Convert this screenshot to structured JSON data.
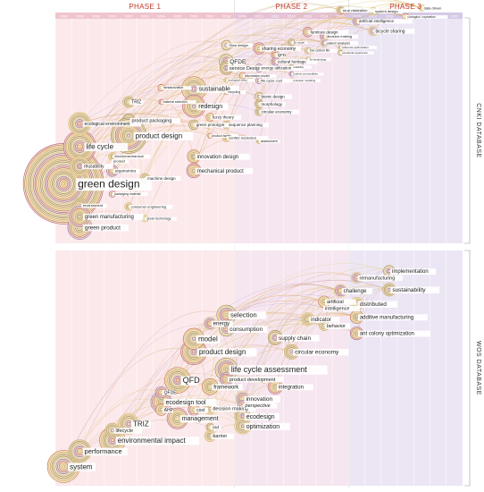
{
  "chart_data": {
    "type": "timeline",
    "phases": [
      {
        "label": "PHASE 1",
        "start": 1998,
        "end": 2008
      },
      {
        "label": "PHASE 2",
        "start": 2009,
        "end": 2015
      },
      {
        "label": "PHASE 3",
        "start": 2016,
        "end": 2022
      }
    ],
    "years": [
      1998,
      1999,
      2000,
      2001,
      2002,
      2003,
      2004,
      2005,
      2006,
      2007,
      2008,
      2009,
      2010,
      2011,
      2012,
      2013,
      2014,
      2015,
      2016,
      2017,
      2018,
      2019,
      2020,
      2021,
      2022
    ],
    "panels": [
      {
        "database": "CNKI DATABASE",
        "keywords": [
          {
            "text": "green design",
            "year": 1998,
            "row": 0.735,
            "size": 12,
            "node": 5.0
          },
          {
            "text": "life cycle",
            "year": 1999,
            "row": 0.565,
            "size": 8,
            "node": 2.0
          },
          {
            "text": "ecological environment",
            "year": 1999,
            "row": 0.46,
            "size": 5,
            "node": 1.4
          },
          {
            "text": "reusability",
            "year": 1999,
            "row": 0.655,
            "size": 5,
            "node": 1.2
          },
          {
            "text": "environment",
            "year": 1999,
            "row": 0.835,
            "size": 4,
            "node": 0.9
          },
          {
            "text": "green product",
            "year": 1999,
            "row": 0.935,
            "size": 6.5,
            "node": 1.5
          },
          {
            "text": "green manufacturing",
            "year": 1999,
            "row": 0.885,
            "size": 6,
            "node": 1.5
          },
          {
            "text": "electromechanical",
            "year": 2001,
            "row": 0.61,
            "size": 4,
            "node": 0.5
          },
          {
            "text": "product",
            "year": 2001,
            "row": 0.632,
            "size": 4,
            "node": 0
          },
          {
            "text": "ergonomics",
            "year": 2001,
            "row": 0.676,
            "size": 4.5,
            "node": 0.7
          },
          {
            "text": "packaging material",
            "year": 2001,
            "row": 0.782,
            "size": 3.5,
            "node": 0.4
          },
          {
            "text": "product packaging",
            "year": 2002,
            "row": 0.445,
            "size": 5.5,
            "node": 0.8
          },
          {
            "text": "product design",
            "year": 2002,
            "row": 0.515,
            "size": 8,
            "node": 2.2
          },
          {
            "text": "TRIZ",
            "year": 2002,
            "row": 0.36,
            "size": 5,
            "node": 0.7
          },
          {
            "text": "machine design",
            "year": 2003,
            "row": 0.71,
            "size": 4.5,
            "node": 0.6
          },
          {
            "text": "consumer engineering",
            "year": 2002,
            "row": 0.84,
            "size": 4,
            "node": 0.5
          },
          {
            "text": "green technology",
            "year": 2003,
            "row": 0.895,
            "size": 3.5,
            "node": 0.4
          },
          {
            "text": "miniaturization",
            "year": 2004,
            "row": 0.295,
            "size": 3.5,
            "node": 0.4
          },
          {
            "text": "material selection",
            "year": 2004,
            "row": 0.36,
            "size": 3.5,
            "node": 0.3
          },
          {
            "text": "sustainable",
            "year": 2006,
            "row": 0.3,
            "size": 7,
            "node": 1.5
          },
          {
            "text": "redesign",
            "year": 2006,
            "row": 0.38,
            "size": 7,
            "node": 1.4
          },
          {
            "text": "green prototype",
            "year": 2006,
            "row": 0.465,
            "size": 4.5,
            "node": 0.6
          },
          {
            "text": "innovation design",
            "year": 2006,
            "row": 0.61,
            "size": 6,
            "node": 0.8
          },
          {
            "text": "mechanical product",
            "year": 2006,
            "row": 0.675,
            "size": 6,
            "node": 0.9
          },
          {
            "text": "fuzzy theory",
            "year": 2007,
            "row": 0.43,
            "size": 4.5,
            "node": 0.5
          },
          {
            "text": "product family",
            "year": 2007,
            "row": 0.515,
            "size": 3.5,
            "node": 0.3
          },
          {
            "text": "QFDE",
            "year": 2008,
            "row": 0.175,
            "size": 6.5,
            "node": 0.9
          },
          {
            "text": "service Design",
            "year": 2008,
            "row": 0.205,
            "size": 5.5,
            "node": 0.8
          },
          {
            "text": "Slow design",
            "year": 2008,
            "row": 0.1,
            "size": 4,
            "node": 0.6
          },
          {
            "text": "recycling",
            "year": 2008,
            "row": 0.315,
            "size": 3.5,
            "node": 0.3
          },
          {
            "text": "sequence planning",
            "year": 2008,
            "row": 0.465,
            "size": 4.5,
            "node": 0.5
          },
          {
            "text": "conflict resolution",
            "year": 2008,
            "row": 0.525,
            "size": 4,
            "node": 0.5
          },
          {
            "text": "ecological effect",
            "year": 2008,
            "row": 0.26,
            "size": 3,
            "node": 0.3
          },
          {
            "text": "information model",
            "year": 2009,
            "row": 0.24,
            "size": 3.5,
            "node": 0.4
          },
          {
            "text": "energy utilization",
            "year": 2010,
            "row": 0.205,
            "size": 4.5,
            "node": 0.5
          },
          {
            "text": "life cycle cost",
            "year": 2010,
            "row": 0.262,
            "size": 4,
            "node": 0.4
          },
          {
            "text": "bionic design",
            "year": 2010,
            "row": 0.335,
            "size": 4.5,
            "node": 0.5
          },
          {
            "text": "morphology",
            "year": 2010,
            "row": 0.37,
            "size": 4.5,
            "node": 0.5
          },
          {
            "text": "circular economy",
            "year": 2010,
            "row": 0.405,
            "size": 4.5,
            "node": 0.5
          },
          {
            "text": "assessment",
            "year": 2010,
            "row": 0.54,
            "size": 3.5,
            "node": 0.3
          },
          {
            "text": "sharing economy",
            "year": 2010,
            "row": 0.115,
            "size": 5,
            "node": 0.7
          },
          {
            "text": "QFD",
            "year": 2011,
            "row": 0.145,
            "size": 4.5,
            "node": 0.5
          },
          {
            "text": "cultural heritage",
            "year": 2011,
            "row": 0.175,
            "size": 4.5,
            "node": 0.5
          },
          {
            "text": "tourism commodities",
            "year": 2012,
            "row": 0.232,
            "size": 3,
            "node": 0.3
          },
          {
            "text": "emission modeling",
            "year": 2012,
            "row": 0.262,
            "size": 3,
            "node": 0.3
          },
          {
            "text": "reliability",
            "year": 2012,
            "row": 0.2,
            "size": 3,
            "node": 0.3
          },
          {
            "text": "3d model",
            "year": 2012,
            "row": 0.088,
            "size": 3,
            "node": 0.4
          },
          {
            "text": "low carbon life",
            "year": 2013,
            "row": 0.125,
            "size": 3.5,
            "node": 0.4
          },
          {
            "text": "3d technology",
            "year": 2013,
            "row": 0.165,
            "size": 3,
            "node": 0.3
          },
          {
            "text": "furniture design",
            "year": 2013,
            "row": 0.04,
            "size": 4.5,
            "node": 0.6
          },
          {
            "text": "decision making",
            "year": 2014,
            "row": 0.06,
            "size": 4,
            "node": 0.5
          },
          {
            "text": "patent analysis",
            "year": 2014,
            "row": 0.09,
            "size": 4,
            "node": 0.5
          },
          {
            "text": "reference optimization",
            "year": 2015,
            "row": 0.11,
            "size": 3,
            "node": 0.3
          },
          {
            "text": "emotional experience",
            "year": 2015,
            "row": 0.135,
            "size": 3,
            "node": 0.3
          },
          {
            "text": "rural vitalization",
            "year": 2015,
            "row": -0.06,
            "size": 4,
            "node": 0.5
          },
          {
            "text": "system design",
            "year": 2017,
            "row": -0.055,
            "size": 4,
            "node": 0.5
          },
          {
            "text": "data driven",
            "year": 2020,
            "row": -0.07,
            "size": 4,
            "node": 0.4
          },
          {
            "text": "biological inspiration",
            "year": 2019,
            "row": -0.03,
            "size": 3.5,
            "node": 0.4
          },
          {
            "text": "artificial intelligence",
            "year": 2016,
            "row": -0.01,
            "size": 4.5,
            "node": 0.5
          },
          {
            "text": "bicycle sharing",
            "year": 2017,
            "row": 0.035,
            "size": 5,
            "node": 0.6
          }
        ]
      },
      {
        "database": "WOS DATABASE",
        "keywords": [
          {
            "text": "system",
            "year": 1998,
            "row": 0.965,
            "size": 8,
            "node": 2.0
          },
          {
            "text": "performance",
            "year": 1999,
            "row": 0.895,
            "size": 7.5,
            "node": 1.4
          },
          {
            "text": "environmental impact",
            "year": 2001,
            "row": 0.845,
            "size": 8,
            "node": 1.6
          },
          {
            "text": "TRIZ",
            "year": 2002,
            "row": 0.77,
            "size": 8,
            "node": 1.3
          },
          {
            "text": "lifecycle",
            "year": 2001,
            "row": 0.8,
            "size": 5.5,
            "node": 0.9
          },
          {
            "text": "management",
            "year": 2005,
            "row": 0.745,
            "size": 7,
            "node": 1.3
          },
          {
            "text": "ecodesign tool",
            "year": 2004,
            "row": 0.67,
            "size": 7,
            "node": 1.3
          },
          {
            "text": "AHP",
            "year": 2004,
            "row": 0.705,
            "size": 5,
            "node": 0.7
          },
          {
            "text": "cost",
            "year": 2006,
            "row": 0.705,
            "size": 5,
            "node": 0.7
          },
          {
            "text": "QFDE",
            "year": 2004,
            "row": 0.625,
            "size": 5,
            "node": 0.7
          },
          {
            "text": "QFD",
            "year": 2005,
            "row": 0.57,
            "size": 9,
            "node": 1.6
          },
          {
            "text": "product design",
            "year": 2006,
            "row": 0.44,
            "size": 8,
            "node": 1.6
          },
          {
            "text": "model",
            "year": 2006,
            "row": 0.38,
            "size": 8,
            "node": 1.3
          },
          {
            "text": "framework",
            "year": 2007,
            "row": 0.6,
            "size": 6,
            "node": 1.0
          },
          {
            "text": "decision making",
            "year": 2007,
            "row": 0.7,
            "size": 5.5,
            "node": 0.7
          },
          {
            "text": "life cycle assessment",
            "year": 2008,
            "row": 0.52,
            "size": 9,
            "node": 1.4
          },
          {
            "text": "product development",
            "year": 2008,
            "row": 0.565,
            "size": 5.5,
            "node": 0.8
          },
          {
            "text": "innovation",
            "year": 2009,
            "row": 0.655,
            "size": 6.5,
            "node": 0.9
          },
          {
            "text": "perspective",
            "year": 2009,
            "row": 0.685,
            "size": 5.5,
            "node": 0.6
          },
          {
            "text": "ecodesign",
            "year": 2009,
            "row": 0.735,
            "size": 7,
            "node": 1.0
          },
          {
            "text": "optimization",
            "year": 2009,
            "row": 0.78,
            "size": 7,
            "node": 1.0
          },
          {
            "text": "cad",
            "year": 2007,
            "row": 0.785,
            "size": 4.5,
            "node": 0.5
          },
          {
            "text": "barrier",
            "year": 2007,
            "row": 0.825,
            "size": 5.5,
            "node": 0.7
          },
          {
            "text": "integration",
            "year": 2011,
            "row": 0.6,
            "size": 6,
            "node": 0.9
          },
          {
            "text": "selection",
            "year": 2008,
            "row": 0.27,
            "size": 7.5,
            "node": 1.2
          },
          {
            "text": "energy",
            "year": 2007,
            "row": 0.31,
            "size": 6,
            "node": 0.8
          },
          {
            "text": "consumption",
            "year": 2008,
            "row": 0.335,
            "size": 6.5,
            "node": 0.9
          },
          {
            "text": "supply chain",
            "year": 2011,
            "row": 0.375,
            "size": 6.5,
            "node": 0.9
          },
          {
            "text": "circular economy",
            "year": 2012,
            "row": 0.44,
            "size": 6.5,
            "node": 0.9
          },
          {
            "text": "indicator",
            "year": 2013,
            "row": 0.29,
            "size": 6,
            "node": 0.8
          },
          {
            "text": "behavior",
            "year": 2014,
            "row": 0.32,
            "size": 5.5,
            "node": 0.6
          },
          {
            "text": "artificial",
            "year": 2014,
            "row": 0.21,
            "size": 5.5,
            "node": 0.7
          },
          {
            "text": "intelligence",
            "year": 2014,
            "row": 0.24,
            "size": 5.5,
            "node": 0
          },
          {
            "text": "challenge",
            "year": 2015,
            "row": 0.16,
            "size": 6,
            "node": 0.8
          },
          {
            "text": "remanufacturing",
            "year": 2016,
            "row": 0.1,
            "size": 5.5,
            "node": 0.7
          },
          {
            "text": "implementation",
            "year": 2018,
            "row": 0.07,
            "size": 6,
            "node": 0.7
          },
          {
            "text": "sustainability",
            "year": 2018,
            "row": 0.155,
            "size": 6.5,
            "node": 0.8
          },
          {
            "text": "distributed",
            "year": 2016,
            "row": 0.22,
            "size": 6.5,
            "node": 0.8
          },
          {
            "text": "additive manufacturing",
            "year": 2016,
            "row": 0.28,
            "size": 6,
            "node": 0.8
          },
          {
            "text": "ant colony optimization",
            "year": 2016,
            "row": 0.355,
            "size": 6,
            "node": 0.8
          }
        ]
      }
    ]
  }
}
